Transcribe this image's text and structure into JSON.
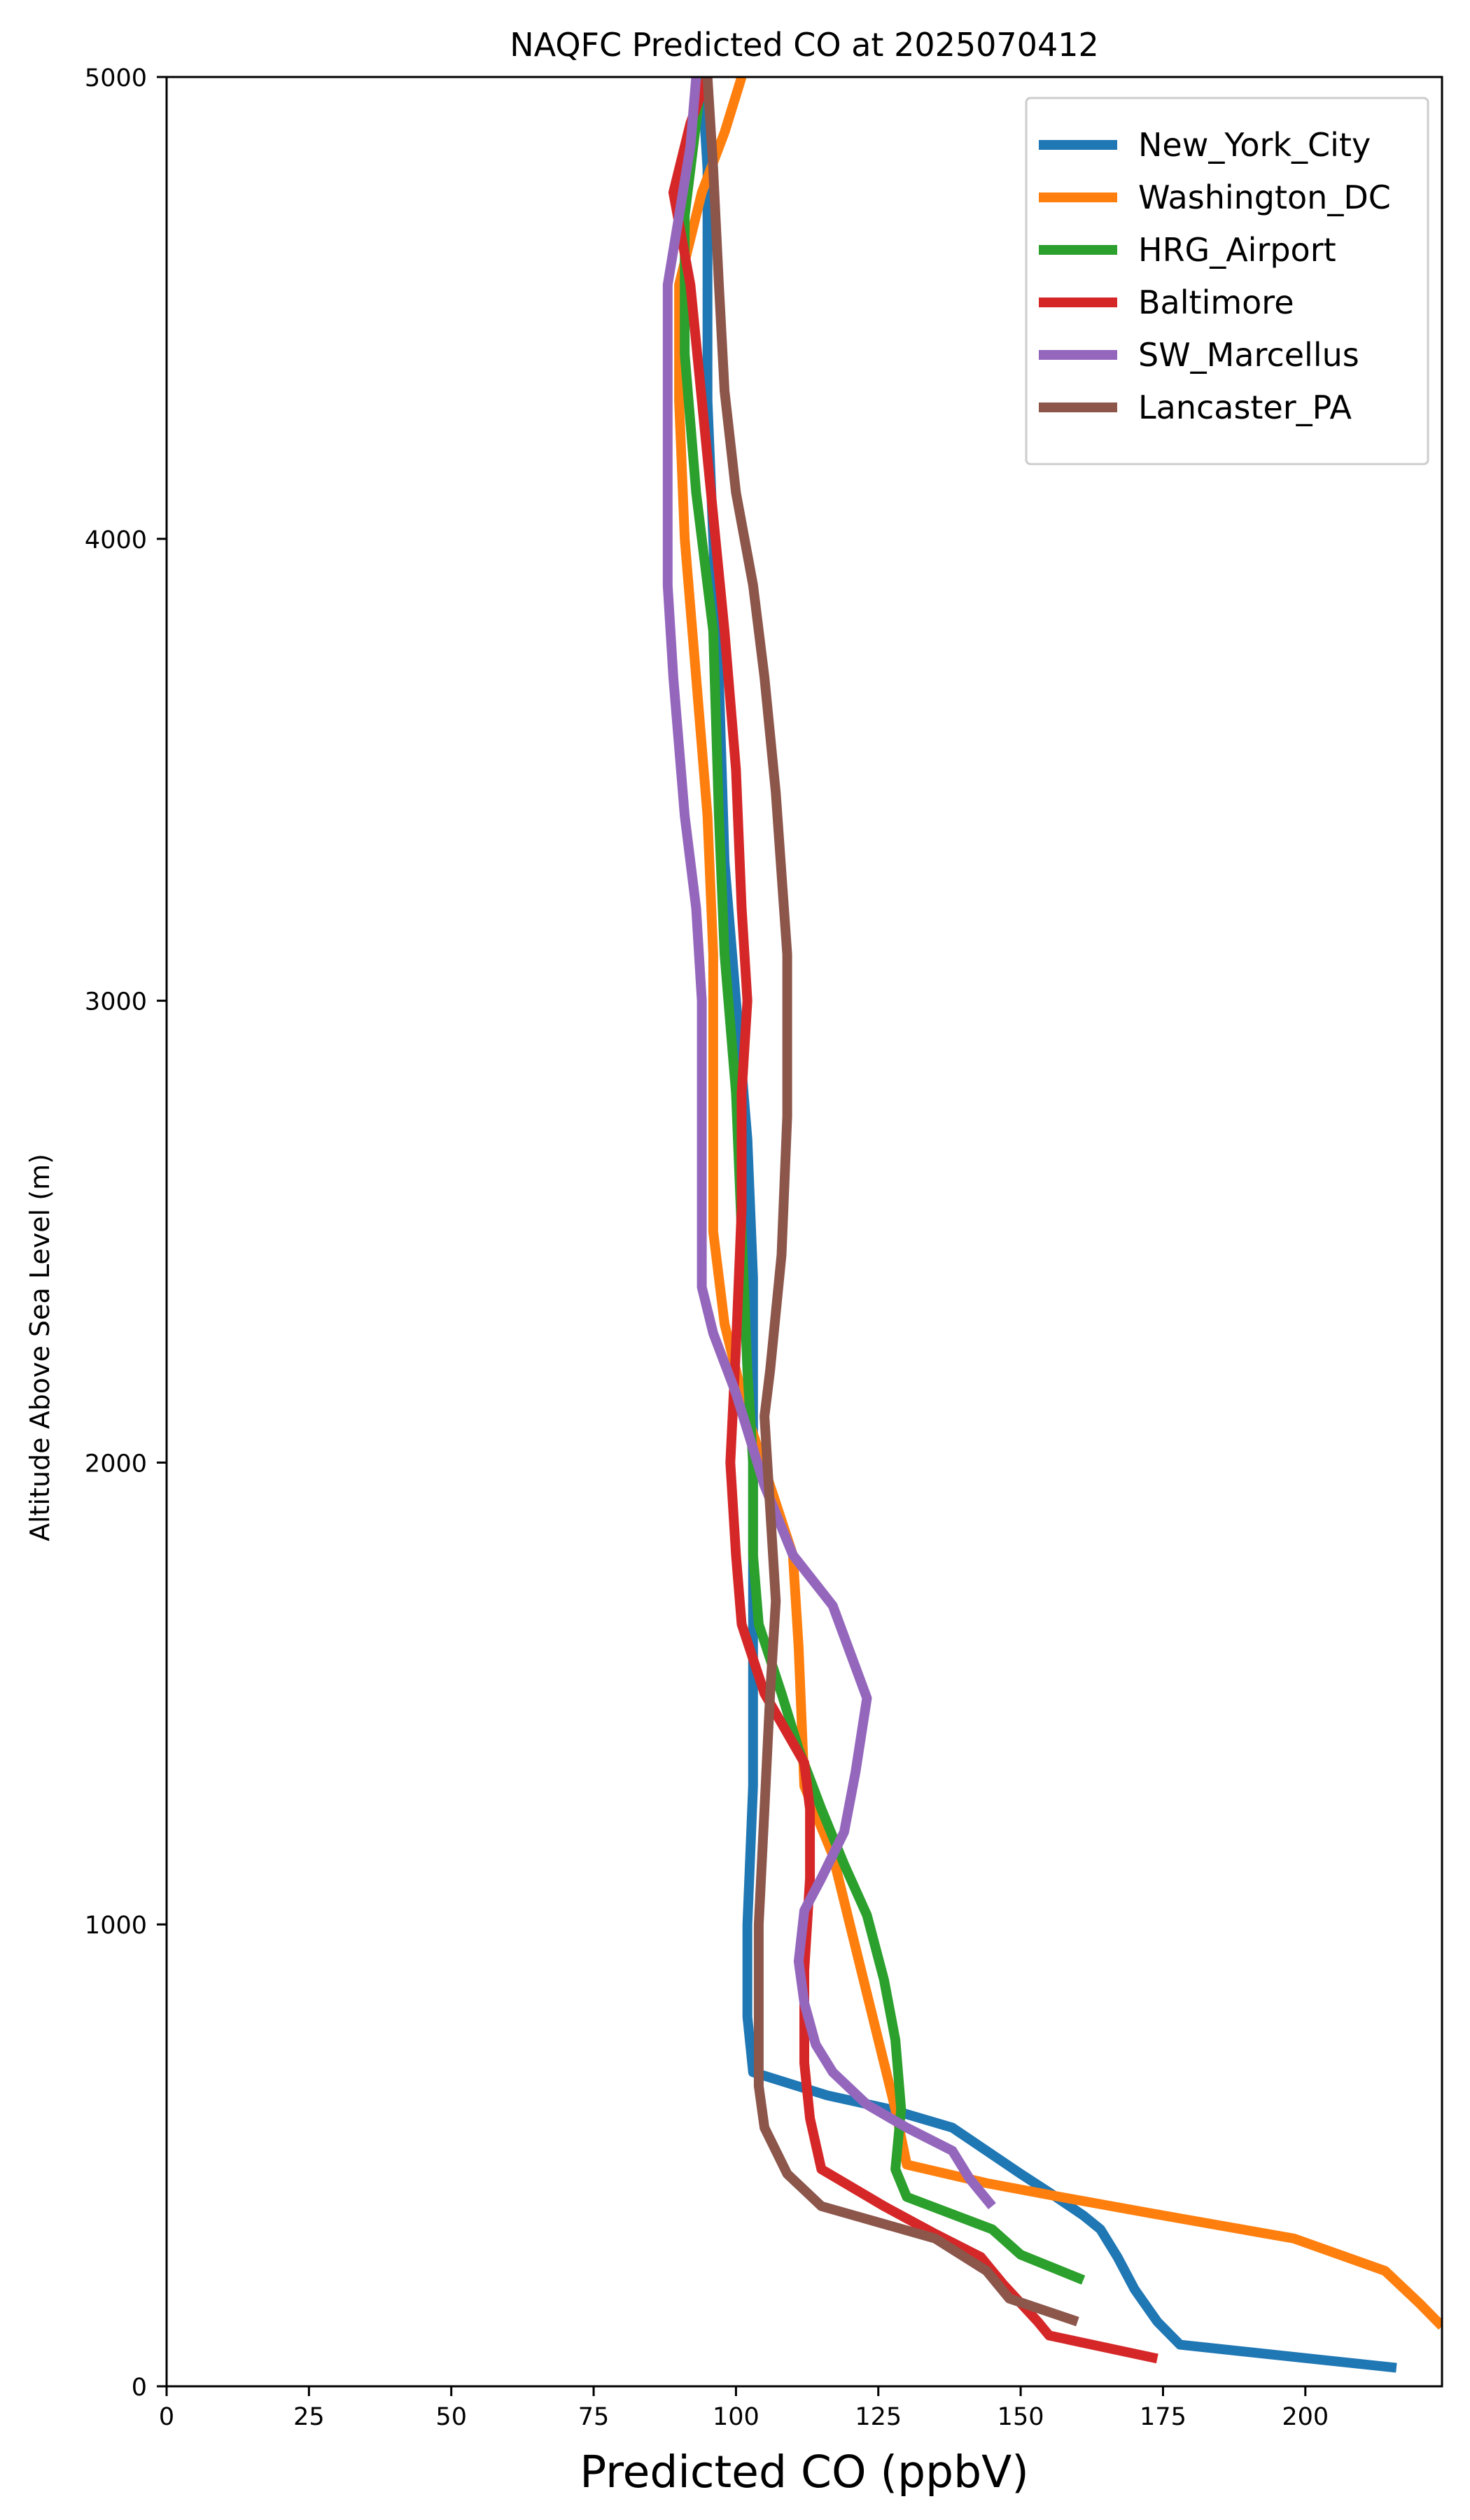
{
  "chart_data": {
    "type": "line",
    "title": "NAQFC Predicted CO at 2025070412",
    "xlabel": "Predicted CO (ppbV)",
    "ylabel": "Altitude Above Sea Level (m)",
    "xlim": [
      0,
      224
    ],
    "ylim": [
      0,
      5000
    ],
    "xticks": [
      0,
      25,
      50,
      75,
      100,
      125,
      150,
      175,
      200
    ],
    "yticks": [
      0,
      1000,
      2000,
      3000,
      4000,
      5000
    ],
    "grid": false,
    "legend_position": "top-right",
    "series": [
      {
        "name": "New_York_City",
        "color": "#1f77b4",
        "points": [
          [
            216,
            40
          ],
          [
            178,
            90
          ],
          [
            174,
            140
          ],
          [
            170,
            210
          ],
          [
            167,
            280
          ],
          [
            164,
            340
          ],
          [
            161,
            370
          ],
          [
            155,
            420
          ],
          [
            150,
            460
          ],
          [
            144,
            510
          ],
          [
            138,
            560
          ],
          [
            127,
            600
          ],
          [
            116,
            630
          ],
          [
            103,
            680
          ],
          [
            102,
            800
          ],
          [
            102,
            1000
          ],
          [
            103,
            1300
          ],
          [
            103,
            1600
          ],
          [
            103,
            1900
          ],
          [
            103,
            2200
          ],
          [
            103,
            2400
          ],
          [
            102,
            2700
          ],
          [
            100,
            3000
          ],
          [
            98,
            3300
          ],
          [
            97,
            3700
          ],
          [
            96,
            4000
          ],
          [
            95,
            4300
          ],
          [
            95,
            4600
          ],
          [
            95,
            4800
          ],
          [
            94,
            5000
          ]
        ]
      },
      {
        "name": "Washington_DC",
        "color": "#ff7f0e",
        "points": [
          [
            224,
            130
          ],
          [
            220,
            180
          ],
          [
            214,
            250
          ],
          [
            198,
            320
          ],
          [
            175,
            370
          ],
          [
            157,
            410
          ],
          [
            144,
            440
          ],
          [
            130,
            480
          ],
          [
            128,
            600
          ],
          [
            126,
            700
          ],
          [
            123,
            850
          ],
          [
            120,
            1000
          ],
          [
            117,
            1150
          ],
          [
            112,
            1300
          ],
          [
            111,
            1600
          ],
          [
            110,
            1800
          ],
          [
            106,
            1950
          ],
          [
            102,
            2100
          ],
          [
            98,
            2300
          ],
          [
            96,
            2500
          ],
          [
            96,
            2800
          ],
          [
            96,
            3100
          ],
          [
            95,
            3400
          ],
          [
            93,
            3700
          ],
          [
            91,
            4000
          ],
          [
            90,
            4300
          ],
          [
            90,
            4550
          ],
          [
            94,
            4750
          ],
          [
            98,
            4880
          ],
          [
            101,
            5000
          ]
        ]
      },
      {
        "name": "HRG_Airport",
        "color": "#2ca02c",
        "points": [
          [
            161,
            230
          ],
          [
            150,
            285
          ],
          [
            145,
            340
          ],
          [
            130,
            410
          ],
          [
            128,
            470
          ],
          [
            129,
            600
          ],
          [
            128,
            750
          ],
          [
            126,
            880
          ],
          [
            123,
            1020
          ],
          [
            119,
            1130
          ],
          [
            115,
            1250
          ],
          [
            111,
            1380
          ],
          [
            108,
            1500
          ],
          [
            104,
            1650
          ],
          [
            103,
            1800
          ],
          [
            103,
            2000
          ],
          [
            102,
            2200
          ],
          [
            101,
            2500
          ],
          [
            100,
            2800
          ],
          [
            98,
            3100
          ],
          [
            97,
            3400
          ],
          [
            96,
            3800
          ],
          [
            93,
            4100
          ],
          [
            91,
            4400
          ],
          [
            91,
            4700
          ],
          [
            94,
            5000
          ]
        ]
      },
      {
        "name": "Baltimore",
        "color": "#d62728",
        "points": [
          [
            174,
            60
          ],
          [
            155,
            110
          ],
          [
            153,
            140
          ],
          [
            147,
            220
          ],
          [
            143,
            280
          ],
          [
            135,
            330
          ],
          [
            126,
            390
          ],
          [
            115,
            470
          ],
          [
            113,
            580
          ],
          [
            112,
            700
          ],
          [
            112,
            900
          ],
          [
            113,
            1100
          ],
          [
            113,
            1250
          ],
          [
            112,
            1350
          ],
          [
            105,
            1500
          ],
          [
            101,
            1650
          ],
          [
            100,
            1800
          ],
          [
            99,
            2000
          ],
          [
            100,
            2250
          ],
          [
            101,
            2550
          ],
          [
            101,
            2800
          ],
          [
            102,
            3000
          ],
          [
            101,
            3200
          ],
          [
            100,
            3500
          ],
          [
            98,
            3800
          ],
          [
            96,
            4050
          ],
          [
            94,
            4300
          ],
          [
            92,
            4550
          ],
          [
            89,
            4750
          ],
          [
            92,
            4900
          ],
          [
            95,
            5000
          ]
        ]
      },
      {
        "name": "SW_Marcellus",
        "color": "#9467bd",
        "points": [
          [
            145,
            390
          ],
          [
            141,
            450
          ],
          [
            138,
            510
          ],
          [
            130,
            560
          ],
          [
            123,
            610
          ],
          [
            117,
            680
          ],
          [
            114,
            740
          ],
          [
            112,
            830
          ],
          [
            111,
            920
          ],
          [
            112,
            1030
          ],
          [
            115,
            1100
          ],
          [
            119,
            1200
          ],
          [
            121,
            1330
          ],
          [
            123,
            1490
          ],
          [
            117,
            1690
          ],
          [
            110,
            1800
          ],
          [
            105,
            1950
          ],
          [
            100,
            2150
          ],
          [
            96,
            2280
          ],
          [
            94,
            2380
          ],
          [
            94,
            2680
          ],
          [
            94,
            3000
          ],
          [
            93,
            3200
          ],
          [
            91,
            3400
          ],
          [
            89,
            3700
          ],
          [
            88,
            3900
          ],
          [
            88,
            4100
          ],
          [
            88,
            4300
          ],
          [
            88,
            4550
          ],
          [
            90,
            4700
          ],
          [
            92,
            4850
          ],
          [
            93,
            5000
          ]
        ]
      },
      {
        "name": "Lancaster_PA",
        "color": "#8c564b",
        "points": [
          [
            160,
            140
          ],
          [
            148,
            190
          ],
          [
            144,
            250
          ],
          [
            135,
            320
          ],
          [
            115,
            390
          ],
          [
            109,
            460
          ],
          [
            105,
            560
          ],
          [
            104,
            650
          ],
          [
            104,
            800
          ],
          [
            104,
            1000
          ],
          [
            105,
            1250
          ],
          [
            106,
            1500
          ],
          [
            107,
            1700
          ],
          [
            106,
            1900
          ],
          [
            105,
            2100
          ],
          [
            106,
            2200
          ],
          [
            108,
            2450
          ],
          [
            109,
            2750
          ],
          [
            109,
            3100
          ],
          [
            107,
            3450
          ],
          [
            105,
            3700
          ],
          [
            103,
            3900
          ],
          [
            100,
            4100
          ],
          [
            98,
            4320
          ],
          [
            97,
            4550
          ],
          [
            96,
            4800
          ],
          [
            95,
            5000
          ]
        ]
      }
    ]
  }
}
